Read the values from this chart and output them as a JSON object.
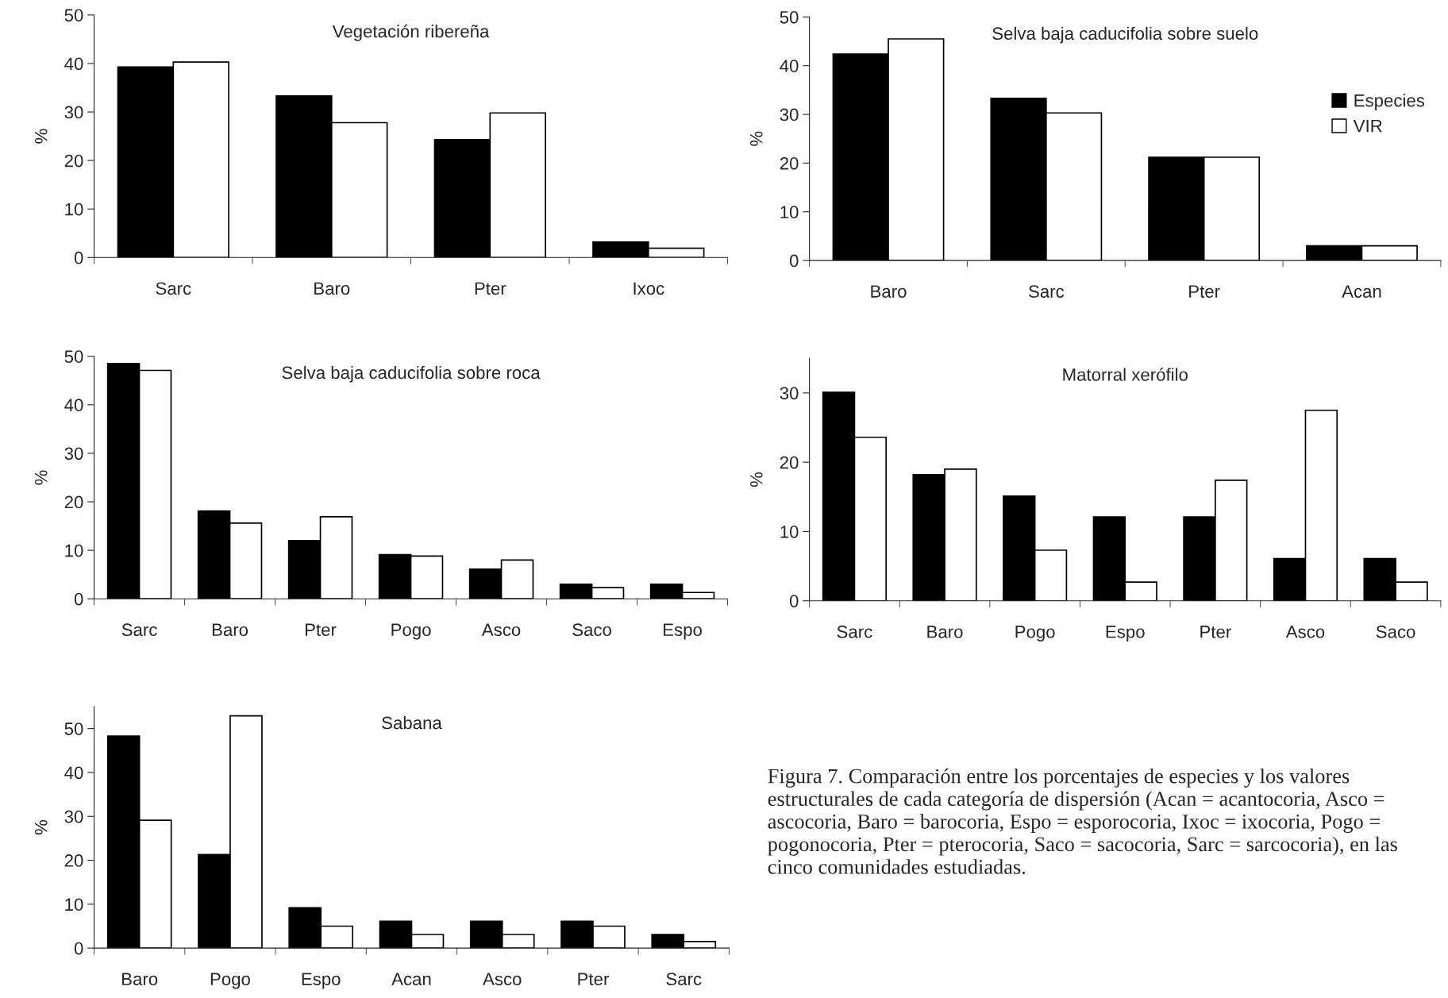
{
  "chart_data": [
    {
      "type": "bar",
      "title": "Vegetación ribereña",
      "ylabel": "%",
      "categories": [
        "Sarc",
        "Baro",
        "Pter",
        "Ixoc"
      ],
      "ylim": [
        0,
        50
      ],
      "yticks": [
        0,
        10,
        20,
        30,
        40,
        50
      ],
      "grid": false,
      "legend": false,
      "series": [
        {
          "color": "#000000",
          "values": [
            39.3,
            33.3,
            24.3,
            3.2
          ]
        },
        {
          "color": "#ffffff",
          "values": [
            40.3,
            27.8,
            29.8,
            1.9
          ]
        }
      ]
    },
    {
      "type": "bar",
      "title": "Selva baja caducifolia sobre suelo",
      "ylabel": "%",
      "categories": [
        "Baro",
        "Sarc",
        "Pter",
        "Acan"
      ],
      "ylim": [
        0,
        50
      ],
      "yticks": [
        0,
        10,
        20,
        30,
        40,
        50
      ],
      "grid": false,
      "legend": "top right",
      "series": [
        {
          "name": "Especies",
          "color": "#000000",
          "values": [
            42.4,
            33.3,
            21.2,
            3.0
          ]
        },
        {
          "name": "VIR",
          "color": "#ffffff",
          "values": [
            45.5,
            30.3,
            21.2,
            3.0
          ]
        }
      ]
    },
    {
      "type": "bar",
      "title": "Selva baja caducifolia sobre roca",
      "ylabel": "%",
      "categories": [
        "Sarc",
        "Baro",
        "Pter",
        "Pogo",
        "Asco",
        "Saco",
        "Espo"
      ],
      "ylim": [
        0,
        50
      ],
      "yticks": [
        0,
        10,
        20,
        30,
        40,
        50
      ],
      "grid": false,
      "legend": false,
      "series": [
        {
          "color": "#000000",
          "values": [
            48.5,
            18.1,
            12.0,
            9.1,
            6.1,
            3.0,
            3.0
          ]
        },
        {
          "color": "#ffffff",
          "values": [
            47.1,
            15.6,
            16.9,
            8.8,
            8.0,
            2.3,
            1.3
          ]
        }
      ]
    },
    {
      "type": "bar",
      "title": "Matorral xerófilo",
      "ylabel": "%",
      "categories": [
        "Sarc",
        "Baro",
        "Pogo",
        "Espo",
        "Pter",
        "Asco",
        "Saco"
      ],
      "ylim": [
        0,
        35
      ],
      "yticks": [
        0,
        10,
        20,
        30
      ],
      "grid": false,
      "legend": false,
      "series": [
        {
          "color": "#000000",
          "values": [
            30.1,
            18.2,
            15.1,
            12.1,
            12.1,
            6.1,
            6.1
          ]
        },
        {
          "color": "#ffffff",
          "values": [
            23.6,
            19.0,
            7.3,
            2.7,
            17.4,
            27.5,
            2.7
          ]
        }
      ]
    },
    {
      "type": "bar",
      "title": "Sabana",
      "ylabel": "%",
      "categories": [
        "Baro",
        "Pogo",
        "Espo",
        "Acan",
        "Asco",
        "Pter",
        "Sarc"
      ],
      "ylim": [
        0,
        55
      ],
      "yticks": [
        0,
        10,
        20,
        30,
        40,
        50
      ],
      "grid": false,
      "legend": false,
      "series": [
        {
          "color": "#000000",
          "values": [
            48.3,
            21.3,
            9.2,
            6.1,
            6.1,
            6.1,
            3.1
          ]
        },
        {
          "color": "#ffffff",
          "values": [
            29.1,
            52.9,
            5.0,
            3.1,
            3.1,
            5.0,
            1.5
          ]
        }
      ]
    },
    {
      "type": "other",
      "annotations": [
        "Figura 7. Comparación entre los porcentajes de especies y los valores estructurales de cada categoría de dispersión (Acan = acantocoria, Asco = ascocoria, Baro = barocoria, Espo = esporocoria, Ixoc = ixocoria, Pogo = pogonocoria, Pter = pterocoria, Saco = sacocoria, Sarc = sarcocoria), en las cinco comunidades estudiadas."
      ]
    }
  ]
}
